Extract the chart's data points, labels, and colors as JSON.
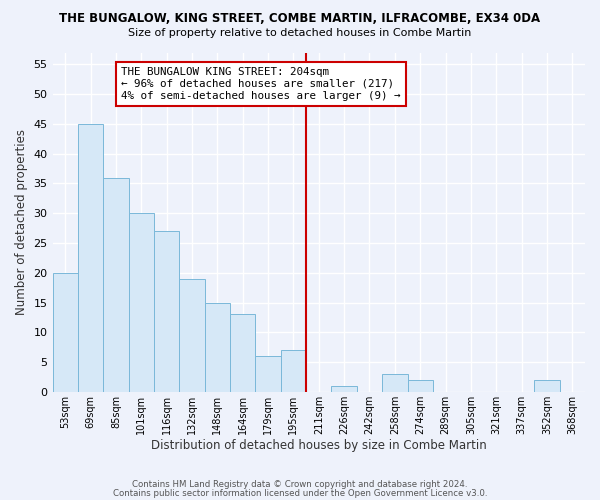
{
  "title": "THE BUNGALOW, KING STREET, COMBE MARTIN, ILFRACOMBE, EX34 0DA",
  "subtitle": "Size of property relative to detached houses in Combe Martin",
  "xlabel": "Distribution of detached houses by size in Combe Martin",
  "ylabel": "Number of detached properties",
  "bin_labels": [
    "53sqm",
    "69sqm",
    "85sqm",
    "101sqm",
    "116sqm",
    "132sqm",
    "148sqm",
    "164sqm",
    "179sqm",
    "195sqm",
    "211sqm",
    "226sqm",
    "242sqm",
    "258sqm",
    "274sqm",
    "289sqm",
    "305sqm",
    "321sqm",
    "337sqm",
    "352sqm",
    "368sqm"
  ],
  "bar_heights": [
    20,
    45,
    36,
    30,
    27,
    19,
    15,
    13,
    6,
    7,
    0,
    1,
    0,
    3,
    2,
    0,
    0,
    0,
    0,
    2,
    0
  ],
  "bar_color": "#d6e8f7",
  "bar_edge_color": "#7ab8d9",
  "highlight_line_label": "THE BUNGALOW KING STREET: 204sqm",
  "annotation_line1": "← 96% of detached houses are smaller (217)",
  "annotation_line2": "4% of semi-detached houses are larger (9) →",
  "ylim": [
    0,
    57
  ],
  "yticks": [
    0,
    5,
    10,
    15,
    20,
    25,
    30,
    35,
    40,
    45,
    50,
    55
  ],
  "footer1": "Contains HM Land Registry data © Crown copyright and database right 2024.",
  "footer2": "Contains public sector information licensed under the Open Government Licence v3.0.",
  "bg_color": "#eef2fb",
  "grid_color": "#ffffff"
}
